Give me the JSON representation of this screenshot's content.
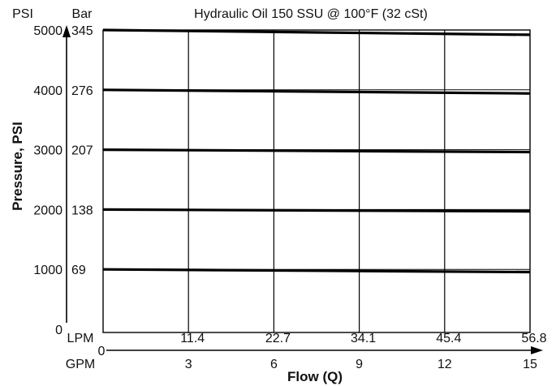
{
  "chart_data": {
    "type": "line",
    "title": "Hydraulic Oil 150 SSU @ 100°F (32 cSt)",
    "ylabel": "Pressure, PSI",
    "xlabel": "Flow (Q)",
    "y_unit_labels": {
      "psi": "PSI",
      "bar": "Bar"
    },
    "x_unit_labels": {
      "lpm": "LPM",
      "gpm": "GPM"
    },
    "y_ticks_psi": [
      "0",
      "1000",
      "2000",
      "3000",
      "4000",
      "5000"
    ],
    "y_ticks_bar": [
      "69",
      "138",
      "207",
      "276",
      "345"
    ],
    "x_ticks_lpm": [
      "11.4",
      "22.7",
      "34.1",
      "45.4",
      "56.8"
    ],
    "x_ticks_gpm": [
      "0",
      "3",
      "6",
      "9",
      "12",
      "15"
    ],
    "xlim": [
      0,
      15
    ],
    "ylim": [
      0,
      5000
    ],
    "grid": true,
    "series": [
      {
        "x": [
          0,
          15
        ],
        "y": [
          5000,
          4920
        ]
      },
      {
        "x": [
          0,
          15
        ],
        "y": [
          4000,
          3940
        ]
      },
      {
        "x": [
          0,
          15
        ],
        "y": [
          3000,
          2960
        ]
      },
      {
        "x": [
          0,
          15
        ],
        "y": [
          2000,
          1970
        ]
      },
      {
        "x": [
          0,
          15
        ],
        "y": [
          1000,
          955
        ]
      }
    ]
  }
}
